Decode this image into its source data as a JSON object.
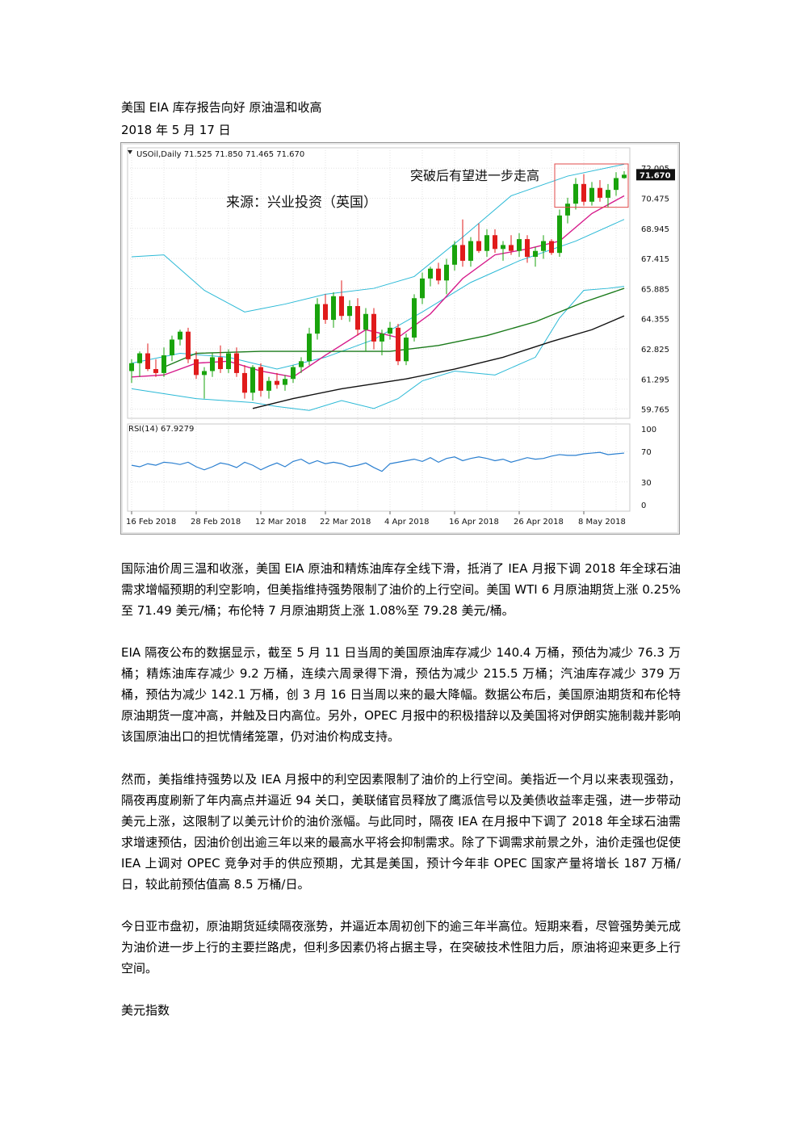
{
  "article": {
    "title": "美国 EIA 库存报告向好  原油温和收高",
    "date": "2018 年 5 月 17 日",
    "paragraphs": [
      "国际油价周三温和收涨，美国 EIA 原油和精炼油库存全线下滑，抵消了 IEA 月报下调 2018 年全球石油需求增幅预期的利空影响，但美指维持强势限制了油价的上行空间。美国 WTI 6 月原油期货上涨 0.25%至 71.49 美元/桶；布伦特 7 月原油期货上涨 1.08%至 79.28 美元/桶。",
      "EIA 隔夜公布的数据显示，截至 5 月 11 日当周的美国原油库存减少 140.4 万桶，预估为减少 76.3 万桶；精炼油库存减少 9.2 万桶，连续六周录得下滑，预估为减少 215.5 万桶；汽油库存减少 379 万桶，预估为减少 142.1 万桶，创 3 月 16 日当周以来的最大降幅。数据公布后，美国原油期货和布伦特原油期货一度冲高，并触及日内高位。另外，OPEC 月报中的积极措辞以及美国将对伊朗实施制裁并影响该国原油出口的担忧情绪笼罩，仍对油价构成支持。",
      "然而，美指维持强势以及 IEA 月报中的利空因素限制了油价的上行空间。美指近一个月以来表现强劲，隔夜再度刷新了年内高点并逼近 94 关口，美联储官员释放了鹰派信号以及美债收益率走强，进一步带动美元上涨，这限制了以美元计价的油价涨幅。与此同时，隔夜 IEA 在月报中下调了 2018 年全球石油需求增速预估，因油价创出逾三年以来的最高水平将会抑制需求。除了下调需求前景之外，油价走强也促使 IEA 上调对 OPEC 竞争对手的供应预期，尤其是美国，预计今年非 OPEC 国家产量将增长 187 万桶/日，较此前预估值高 8.5 万桶/日。",
      "今日亚市盘初，原油期货延续隔夜涨势，并逼近本周初创下的逾三年半高位。短期来看，尽管强势美元成为油价进一步上行的主要拦路虎，但利多因素仍将占据主导，在突破技术性阻力后，原油将迎来更多上行空间。"
    ],
    "next_section": "美元指数"
  },
  "chart_data": {
    "type": "candlestick",
    "header": "USOil,Daily  71.525 71.850 71.465 71.670",
    "annotation_breakout": "突破后有望进一步走高",
    "annotation_source": "来源：兴业投资（英国）",
    "last_price_label": "71.670",
    "price_ticks": [
      "72.005",
      "70.475",
      "68.945",
      "67.415",
      "65.885",
      "64.355",
      "62.825",
      "61.295",
      "59.765"
    ],
    "price_tick_values": [
      72.005,
      70.475,
      68.945,
      67.415,
      65.885,
      64.355,
      62.825,
      61.295,
      59.765
    ],
    "ylim": [
      59.3,
      72.3
    ],
    "x_labels": [
      "16 Feb 2018",
      "28 Feb 2018",
      "12 Mar 2018",
      "22 Mar 2018",
      "4 Apr 2018",
      "16 Apr 2018",
      "26 Apr 2018",
      "8 May 2018"
    ],
    "x_label_bar_index": [
      0,
      8,
      16,
      24,
      32,
      40,
      48,
      56
    ],
    "rsi_label": "RSI(14) 67.9279",
    "rsi_ticks": [
      "100",
      "70",
      "30",
      "0"
    ],
    "rsi_tick_values": [
      100,
      70,
      30,
      0
    ],
    "rsi_values": [
      52,
      50,
      54,
      52,
      56,
      55,
      53,
      56,
      50,
      46,
      50,
      55,
      53,
      49,
      56,
      52,
      46,
      51,
      55,
      50,
      57,
      60,
      54,
      58,
      54,
      56,
      54,
      50,
      52,
      55,
      49,
      44,
      54,
      56,
      58,
      60,
      57,
      62,
      56,
      61,
      63,
      58,
      61,
      63,
      61,
      58,
      60,
      56,
      59,
      62,
      60,
      61,
      64,
      66,
      65,
      65,
      67,
      68,
      69,
      66,
      67,
      68
    ],
    "candles": [
      {
        "o": 61.7,
        "h": 62.3,
        "l": 61.1,
        "c": 62.1
      },
      {
        "o": 62.1,
        "h": 62.7,
        "l": 61.4,
        "c": 62.6
      },
      {
        "o": 62.6,
        "h": 63.1,
        "l": 61.7,
        "c": 61.8
      },
      {
        "o": 61.8,
        "h": 62.3,
        "l": 61.4,
        "c": 61.6
      },
      {
        "o": 61.6,
        "h": 62.9,
        "l": 61.4,
        "c": 62.5
      },
      {
        "o": 62.5,
        "h": 63.5,
        "l": 62.2,
        "c": 63.3
      },
      {
        "o": 63.3,
        "h": 63.8,
        "l": 63.0,
        "c": 63.7
      },
      {
        "o": 63.7,
        "h": 63.9,
        "l": 62.1,
        "c": 62.3
      },
      {
        "o": 62.3,
        "h": 62.7,
        "l": 61.3,
        "c": 61.5
      },
      {
        "o": 61.5,
        "h": 61.9,
        "l": 60.3,
        "c": 61.7
      },
      {
        "o": 61.7,
        "h": 62.6,
        "l": 61.4,
        "c": 62.4
      },
      {
        "o": 62.4,
        "h": 63.0,
        "l": 61.6,
        "c": 61.8
      },
      {
        "o": 61.8,
        "h": 62.8,
        "l": 61.6,
        "c": 62.6
      },
      {
        "o": 62.6,
        "h": 62.9,
        "l": 61.4,
        "c": 61.6
      },
      {
        "o": 61.6,
        "h": 62.0,
        "l": 60.3,
        "c": 60.6
      },
      {
        "o": 60.6,
        "h": 62.0,
        "l": 60.2,
        "c": 61.9
      },
      {
        "o": 61.9,
        "h": 62.1,
        "l": 60.4,
        "c": 60.7
      },
      {
        "o": 60.7,
        "h": 61.4,
        "l": 60.3,
        "c": 61.2
      },
      {
        "o": 61.2,
        "h": 61.6,
        "l": 60.8,
        "c": 61.0
      },
      {
        "o": 61.0,
        "h": 61.5,
        "l": 60.7,
        "c": 61.3
      },
      {
        "o": 61.3,
        "h": 62.0,
        "l": 61.1,
        "c": 61.9
      },
      {
        "o": 61.9,
        "h": 62.4,
        "l": 61.6,
        "c": 62.2
      },
      {
        "o": 62.2,
        "h": 63.9,
        "l": 62.0,
        "c": 63.6
      },
      {
        "o": 63.6,
        "h": 65.4,
        "l": 63.3,
        "c": 65.1
      },
      {
        "o": 65.1,
        "h": 65.6,
        "l": 64.1,
        "c": 64.3
      },
      {
        "o": 64.3,
        "h": 65.7,
        "l": 63.9,
        "c": 65.5
      },
      {
        "o": 65.5,
        "h": 66.3,
        "l": 64.3,
        "c": 64.5
      },
      {
        "o": 64.5,
        "h": 65.3,
        "l": 64.2,
        "c": 65.0
      },
      {
        "o": 65.0,
        "h": 65.4,
        "l": 63.5,
        "c": 63.8
      },
      {
        "o": 63.8,
        "h": 64.9,
        "l": 62.7,
        "c": 64.6
      },
      {
        "o": 64.6,
        "h": 64.9,
        "l": 62.8,
        "c": 63.2
      },
      {
        "o": 63.2,
        "h": 63.8,
        "l": 62.5,
        "c": 63.6
      },
      {
        "o": 63.6,
        "h": 64.2,
        "l": 63.3,
        "c": 63.9
      },
      {
        "o": 63.9,
        "h": 64.1,
        "l": 62.0,
        "c": 62.2
      },
      {
        "o": 62.2,
        "h": 63.6,
        "l": 62.0,
        "c": 63.4
      },
      {
        "o": 63.4,
        "h": 65.6,
        "l": 63.2,
        "c": 65.4
      },
      {
        "o": 65.4,
        "h": 66.7,
        "l": 65.1,
        "c": 66.4
      },
      {
        "o": 66.4,
        "h": 67.0,
        "l": 66.0,
        "c": 66.9
      },
      {
        "o": 66.9,
        "h": 67.2,
        "l": 66.1,
        "c": 66.3
      },
      {
        "o": 66.3,
        "h": 67.4,
        "l": 65.6,
        "c": 67.1
      },
      {
        "o": 67.1,
        "h": 68.3,
        "l": 66.8,
        "c": 68.1
      },
      {
        "o": 68.1,
        "h": 69.4,
        "l": 67.0,
        "c": 67.3
      },
      {
        "o": 67.3,
        "h": 68.5,
        "l": 67.0,
        "c": 68.3
      },
      {
        "o": 68.3,
        "h": 69.2,
        "l": 67.7,
        "c": 67.8
      },
      {
        "o": 67.8,
        "h": 68.9,
        "l": 67.5,
        "c": 68.6
      },
      {
        "o": 68.6,
        "h": 68.9,
        "l": 67.7,
        "c": 67.9
      },
      {
        "o": 67.9,
        "h": 68.3,
        "l": 67.3,
        "c": 68.1
      },
      {
        "o": 68.1,
        "h": 68.6,
        "l": 67.6,
        "c": 67.8
      },
      {
        "o": 67.8,
        "h": 68.7,
        "l": 67.5,
        "c": 68.4
      },
      {
        "o": 68.4,
        "h": 68.6,
        "l": 67.2,
        "c": 67.5
      },
      {
        "o": 67.5,
        "h": 68.0,
        "l": 67.0,
        "c": 67.8
      },
      {
        "o": 67.8,
        "h": 68.6,
        "l": 67.4,
        "c": 68.3
      },
      {
        "o": 68.3,
        "h": 68.4,
        "l": 67.6,
        "c": 67.7
      },
      {
        "o": 67.7,
        "h": 69.9,
        "l": 67.5,
        "c": 69.6
      },
      {
        "o": 69.6,
        "h": 70.5,
        "l": 69.2,
        "c": 70.2
      },
      {
        "o": 70.2,
        "h": 71.5,
        "l": 69.9,
        "c": 71.2
      },
      {
        "o": 71.2,
        "h": 71.7,
        "l": 70.1,
        "c": 70.3
      },
      {
        "o": 70.3,
        "h": 71.3,
        "l": 70.1,
        "c": 71.0
      },
      {
        "o": 71.0,
        "h": 71.4,
        "l": 70.3,
        "c": 70.5
      },
      {
        "o": 70.5,
        "h": 71.2,
        "l": 70.0,
        "c": 70.9
      },
      {
        "o": 70.9,
        "h": 71.8,
        "l": 70.6,
        "c": 71.5
      },
      {
        "o": 71.5,
        "h": 71.85,
        "l": 71.465,
        "c": 71.67
      }
    ],
    "indicators": {
      "bollinger_upper": {
        "color": "#2ab9d6",
        "values": [
          [
            0,
            67.5
          ],
          [
            4,
            67.6
          ],
          [
            9,
            65.8
          ],
          [
            14,
            64.7
          ],
          [
            19,
            65.1
          ],
          [
            24,
            65.6
          ],
          [
            30,
            65.9
          ],
          [
            35,
            66.5
          ],
          [
            41,
            68.5
          ],
          [
            47,
            70.6
          ],
          [
            54,
            71.6
          ],
          [
            61,
            72.2
          ]
        ]
      },
      "bollinger_middle": {
        "color": "#2ab9d6",
        "values": [
          [
            0,
            62.1
          ],
          [
            6,
            62.6
          ],
          [
            12,
            62.4
          ],
          [
            18,
            61.8
          ],
          [
            24,
            62.4
          ],
          [
            30,
            63.3
          ],
          [
            36,
            64.7
          ],
          [
            42,
            66.2
          ],
          [
            48,
            67.3
          ],
          [
            55,
            68.3
          ],
          [
            61,
            69.4
          ]
        ]
      },
      "bollinger_lower": {
        "color": "#2ab9d6",
        "values": [
          [
            0,
            60.8
          ],
          [
            8,
            60.3
          ],
          [
            15,
            60.1
          ],
          [
            18,
            59.9
          ],
          [
            22,
            59.7
          ],
          [
            26,
            60.2
          ],
          [
            30,
            59.8
          ],
          [
            33,
            60.3
          ],
          [
            36,
            61.2
          ],
          [
            40,
            61.7
          ],
          [
            45,
            61.5
          ],
          [
            50,
            62.4
          ],
          [
            53,
            64.4
          ],
          [
            56,
            65.8
          ],
          [
            59,
            65.9
          ],
          [
            61,
            66.0
          ]
        ]
      },
      "ma_fast": {
        "color": "#d6198a",
        "values": [
          [
            0,
            61.4
          ],
          [
            4,
            61.5
          ],
          [
            8,
            62.1
          ],
          [
            12,
            62.2
          ],
          [
            16,
            61.7
          ],
          [
            20,
            61.4
          ],
          [
            24,
            62.5
          ],
          [
            29,
            63.8
          ],
          [
            33,
            63.4
          ],
          [
            37,
            64.6
          ],
          [
            41,
            66.4
          ],
          [
            45,
            67.6
          ],
          [
            49,
            67.9
          ],
          [
            53,
            68.3
          ],
          [
            57,
            69.7
          ],
          [
            61,
            70.6
          ]
        ]
      },
      "ma_mid": {
        "color": "#1a7a1a",
        "values": [
          [
            4,
            61.9
          ],
          [
            8,
            62.6
          ],
          [
            16,
            62.7
          ],
          [
            24,
            62.7
          ],
          [
            32,
            62.7
          ],
          [
            38,
            63.0
          ],
          [
            44,
            63.5
          ],
          [
            50,
            64.2
          ],
          [
            56,
            65.2
          ],
          [
            61,
            65.9
          ]
        ]
      },
      "ma_slow": {
        "color": "#111111",
        "values": [
          [
            15,
            59.8
          ],
          [
            20,
            60.3
          ],
          [
            26,
            60.8
          ],
          [
            34,
            61.3
          ],
          [
            40,
            61.8
          ],
          [
            46,
            62.4
          ],
          [
            52,
            63.2
          ],
          [
            57,
            63.8
          ],
          [
            61,
            64.5
          ]
        ]
      }
    },
    "colors": {
      "up": "#19a30c",
      "down": "#e01b1b",
      "grid": "#e3e3e3",
      "highlight_box": "#e04a4a"
    }
  }
}
